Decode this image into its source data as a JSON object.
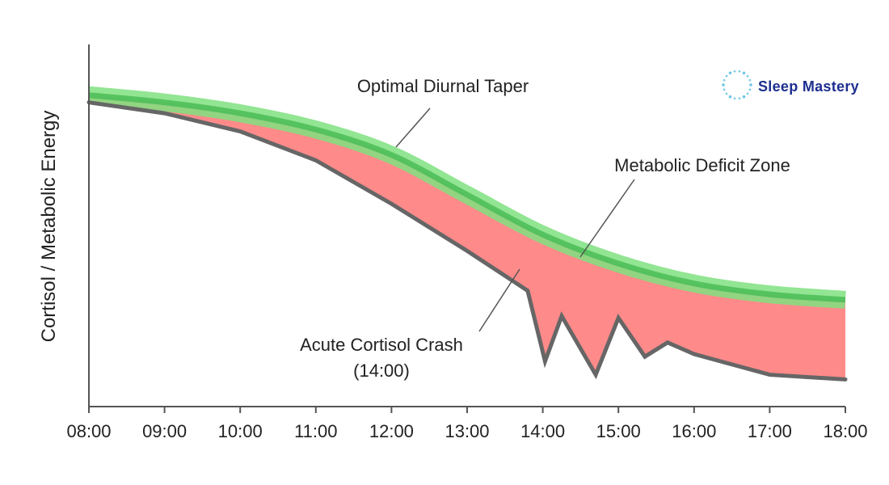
{
  "brand": {
    "name": "Sleep Mastery",
    "icon": "dotted-circle-logo-icon",
    "color": "#1e2f8f"
  },
  "chart_data": {
    "type": "line",
    "title": "",
    "xlabel": "",
    "ylabel": "Cortisol / Metabolic Energy",
    "xticks": [
      "08:00",
      "09:00",
      "10:00",
      "11:00",
      "12:00",
      "13:00",
      "14:00",
      "15:00",
      "16:00",
      "17:00",
      "18:00"
    ],
    "xlim": [
      8,
      18
    ],
    "ylim": [
      0,
      100
    ],
    "grid": false,
    "legend": "none",
    "series": [
      {
        "key": "optimal",
        "color": "#5ccf5c",
        "x": [
          8,
          9,
          10,
          11,
          12,
          13,
          14,
          15,
          16,
          17,
          18
        ],
        "y": [
          86,
          84,
          81,
          76.5,
          69.5,
          58.5,
          47.5,
          39.5,
          34,
          31,
          29.5
        ]
      },
      {
        "key": "actual",
        "color": "#666666",
        "x": [
          8,
          9,
          10,
          11,
          12,
          13,
          13.8,
          14.03,
          14.25,
          14.7,
          15.0,
          15.35,
          15.65,
          16,
          17,
          18
        ],
        "y": [
          84,
          81,
          76,
          68,
          56,
          43,
          32,
          12.5,
          25,
          8.8,
          24.5,
          13.8,
          17.7,
          14.5,
          8.8,
          7.5
        ]
      }
    ],
    "shaded_region": {
      "between": [
        "optimal",
        "actual"
      ],
      "color": "#ff8a8a"
    },
    "annotations": [
      {
        "key": "taper",
        "text": "Optimal Diurnal Taper",
        "pointer_to": "optimal"
      },
      {
        "key": "deficit",
        "text": "Metabolic Deficit Zone",
        "pointer_to": "shaded_region"
      },
      {
        "key": "crash",
        "text": "Acute Cortisol Crash",
        "text2": "(14:00)",
        "pointer_to": "actual"
      }
    ]
  }
}
